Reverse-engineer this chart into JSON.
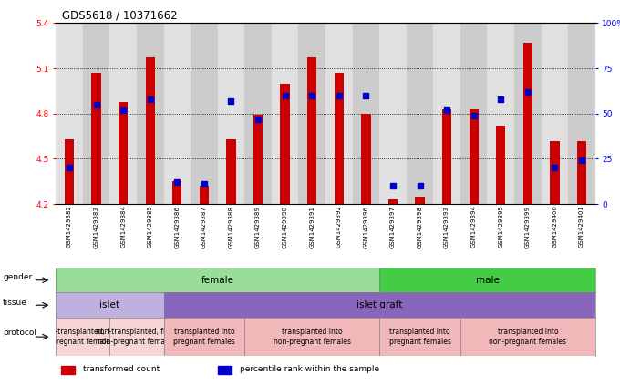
{
  "title": "GDS5618 / 10371662",
  "samples": [
    "GSM1429382",
    "GSM1429383",
    "GSM1429384",
    "GSM1429385",
    "GSM1429386",
    "GSM1429387",
    "GSM1429388",
    "GSM1429389",
    "GSM1429390",
    "GSM1429391",
    "GSM1429392",
    "GSM1429396",
    "GSM1429397",
    "GSM1429398",
    "GSM1429393",
    "GSM1429394",
    "GSM1429395",
    "GSM1429399",
    "GSM1429400",
    "GSM1429401"
  ],
  "red_values": [
    4.63,
    5.07,
    4.88,
    5.17,
    4.35,
    4.32,
    4.63,
    4.79,
    5.0,
    5.17,
    5.07,
    4.8,
    4.23,
    4.25,
    4.83,
    4.83,
    4.72,
    5.27,
    4.62,
    4.62
  ],
  "blue_values_pct": [
    20,
    55,
    52,
    58,
    12,
    11,
    57,
    47,
    60,
    60,
    60,
    60,
    10,
    10,
    52,
    49,
    58,
    62,
    20,
    24
  ],
  "ylim_left": [
    4.2,
    5.4
  ],
  "ylim_right": [
    0,
    100
  ],
  "yticks_left": [
    4.2,
    4.5,
    4.8,
    5.1,
    5.4
  ],
  "yticks_right": [
    0,
    25,
    50,
    75,
    100
  ],
  "ytick_labels_left": [
    "4.2",
    "4.5",
    "4.8",
    "5.1",
    "5.4"
  ],
  "ytick_labels_right": [
    "0",
    "25",
    "50",
    "75",
    "100%"
  ],
  "bar_color": "#cc0000",
  "dot_color": "#0000cc",
  "bar_width": 0.35,
  "dot_size": 18,
  "x_bg_colors": [
    "#e0e0e0",
    "#cccccc"
  ],
  "gender_groups": [
    {
      "label": "female",
      "start": 0,
      "end": 12,
      "color": "#99dd99"
    },
    {
      "label": "male",
      "start": 12,
      "end": 20,
      "color": "#44cc44"
    }
  ],
  "tissue_groups": [
    {
      "label": "islet",
      "start": 0,
      "end": 4,
      "color": "#c0b0e0"
    },
    {
      "label": "islet graft",
      "start": 4,
      "end": 20,
      "color": "#8866bb"
    }
  ],
  "protocol_groups": [
    {
      "label": "non-transplanted, from\npregnant females",
      "start": 0,
      "end": 2,
      "color": "#f5d5d5"
    },
    {
      "label": "non-transplanted, from\nnon-pregnant females",
      "start": 2,
      "end": 4,
      "color": "#f5d5d5"
    },
    {
      "label": "transplanted into\npregnant females",
      "start": 4,
      "end": 7,
      "color": "#f0b8b8"
    },
    {
      "label": "transplanted into\nnon-pregnant females",
      "start": 7,
      "end": 12,
      "color": "#f0b8b8"
    },
    {
      "label": "transplanted into\npregnant females",
      "start": 12,
      "end": 15,
      "color": "#f0b8b8"
    },
    {
      "label": "transplanted into\nnon-pregnant females",
      "start": 15,
      "end": 20,
      "color": "#f0b8b8"
    }
  ],
  "legend_items": [
    {
      "label": "transformed count",
      "color": "#cc0000"
    },
    {
      "label": "percentile rank within the sample",
      "color": "#0000cc"
    }
  ],
  "row_labels": [
    "gender",
    "tissue",
    "protocol"
  ]
}
